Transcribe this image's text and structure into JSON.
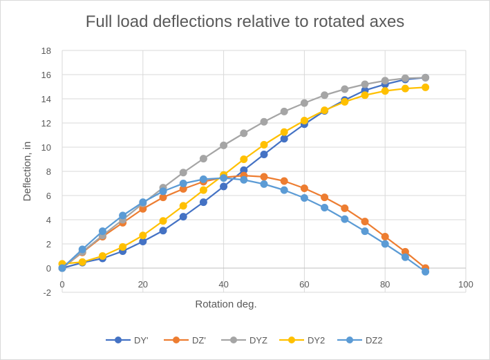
{
  "chart_data": {
    "type": "scatter",
    "title": "Full load deflections relative to rotated axes",
    "xlabel": "Rotation deg.",
    "ylabel": "Deflection, in",
    "xlim": [
      0,
      100
    ],
    "ylim": [
      -2,
      18
    ],
    "xticks": [
      0,
      20,
      40,
      60,
      80,
      100
    ],
    "yticks": [
      -2,
      0,
      2,
      4,
      6,
      8,
      10,
      12,
      14,
      16,
      18
    ],
    "grid": true,
    "legend": "bottom",
    "x": [
      0,
      5,
      10,
      15,
      20,
      25,
      30,
      35,
      40,
      45,
      50,
      55,
      60,
      65,
      70,
      75,
      80,
      85,
      90
    ],
    "series": [
      {
        "name": "DY'",
        "color": "#4472c4",
        "values": [
          0,
          0.45,
          0.8,
          1.4,
          2.2,
          3.1,
          4.25,
          5.45,
          6.75,
          8.1,
          9.4,
          10.7,
          11.9,
          13.0,
          13.9,
          14.7,
          15.2,
          15.6,
          15.75
        ]
      },
      {
        "name": "DZ'",
        "color": "#ed7d31",
        "values": [
          0,
          1.3,
          2.6,
          3.75,
          4.9,
          5.85,
          6.55,
          7.15,
          7.5,
          7.65,
          7.55,
          7.2,
          6.6,
          5.85,
          4.95,
          3.85,
          2.6,
          1.35,
          0
        ]
      },
      {
        "name": "DYZ",
        "color": "#a5a5a5",
        "values": [
          0,
          1.35,
          2.7,
          4.0,
          5.35,
          6.65,
          7.9,
          9.05,
          10.15,
          11.15,
          12.1,
          12.95,
          13.65,
          14.3,
          14.8,
          15.2,
          15.5,
          15.7,
          15.75
        ]
      },
      {
        "name": "DY2",
        "color": "#ffc000",
        "values": [
          0.35,
          0.5,
          1.0,
          1.75,
          2.7,
          3.9,
          5.15,
          6.45,
          7.7,
          9.0,
          10.2,
          11.25,
          12.2,
          13.05,
          13.75,
          14.3,
          14.65,
          14.85,
          14.95
        ]
      },
      {
        "name": "DZ2",
        "color": "#5b9bd5",
        "values": [
          0,
          1.55,
          3.05,
          4.35,
          5.45,
          6.35,
          7.0,
          7.35,
          7.45,
          7.3,
          6.95,
          6.45,
          5.8,
          5.0,
          4.05,
          3.05,
          2.0,
          0.9,
          -0.3
        ]
      }
    ]
  }
}
